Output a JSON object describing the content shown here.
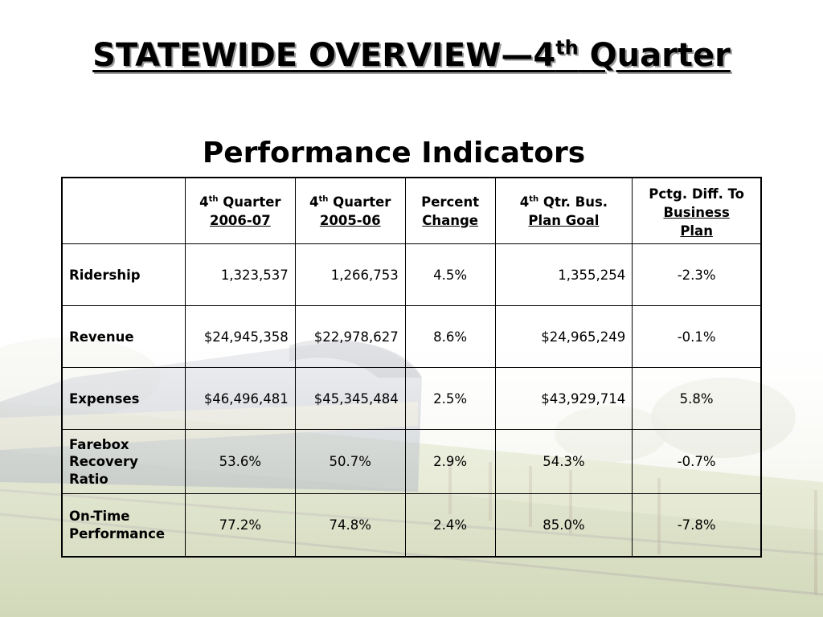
{
  "slide": {
    "title_main": "STATEWIDE OVERVIEW—4",
    "title_sup": "th",
    "title_end": " Quarter",
    "subtitle": "Performance Indicators"
  },
  "table": {
    "headers": [
      {
        "line1": "",
        "sup": "",
        "line1b": "",
        "line2": "",
        "line3": ""
      },
      {
        "line1": "4",
        "sup": "th",
        "line1b": " Quarter",
        "line2": "2006-07",
        "line3": ""
      },
      {
        "line1": "4",
        "sup": "th",
        "line1b": " Quarter",
        "line2": "2005-06",
        "line3": ""
      },
      {
        "line1": "Percent",
        "sup": "",
        "line1b": "",
        "line2": "Change",
        "line3": ""
      },
      {
        "line1": "4",
        "sup": "th",
        "line1b": " Qtr. Bus.",
        "line2": "Plan Goal",
        "line3": ""
      },
      {
        "line1": "Pctg. Diff. To",
        "sup": "",
        "line1b": "",
        "line2": "Business",
        "line3": "Plan"
      }
    ],
    "rows": [
      {
        "label": "Ridership",
        "q2006": "1,323,537",
        "q2005": "1,266,753",
        "pct": "4.5%",
        "goal": "1,355,254",
        "diff": "-2.3%"
      },
      {
        "label": "Revenue",
        "q2006": "$24,945,358",
        "q2005": "$22,978,627",
        "pct": "8.6%",
        "goal": "$24,965,249",
        "diff": "-0.1%"
      },
      {
        "label": "Expenses",
        "q2006": "$46,496,481",
        "q2005": "$45,345,484",
        "pct": "2.5%",
        "goal": "$43,929,714",
        "diff": "5.8%"
      },
      {
        "label": "Farebox Recovery Ratio",
        "q2006": "53.6%",
        "q2005": "50.7%",
        "pct": "2.9%",
        "goal": "54.3%",
        "diff": "-0.7%"
      },
      {
        "label": "On-Time Performance",
        "q2006": "77.2%",
        "q2005": "74.8%",
        "pct": "2.4%",
        "goal": "85.0%",
        "diff": "-7.8%"
      }
    ]
  },
  "colors": {
    "text": "#000000",
    "title_shadow": "#9a9a9a",
    "field_green": "#c9d2a4",
    "train_blue": "#4a5468"
  }
}
